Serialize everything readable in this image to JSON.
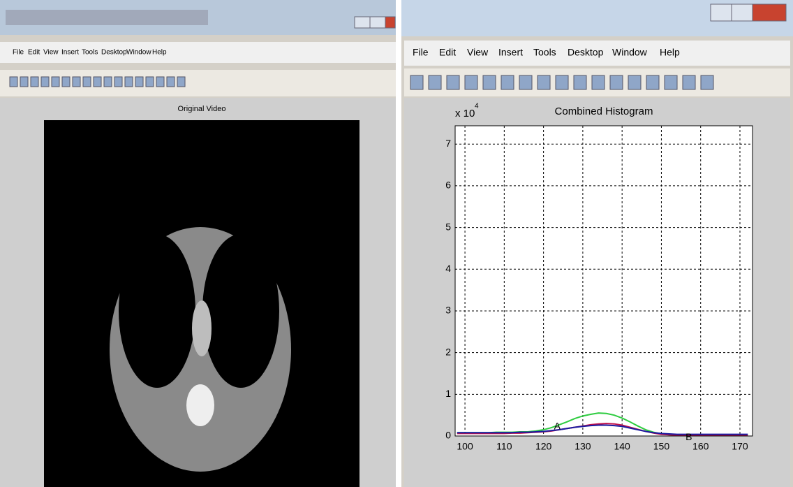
{
  "left_window": {
    "menu": [
      "File",
      "Edit",
      "View",
      "Insert",
      "Tools",
      "Desktop",
      "Window",
      "Help"
    ],
    "axes_title": "Original Video"
  },
  "right_window": {
    "menu": [
      "File",
      "Edit",
      "View",
      "Insert",
      "Tools",
      "Desktop",
      "Window",
      "Help"
    ]
  },
  "chart_data": {
    "type": "line",
    "title": "Combined Histogram",
    "y_multiplier": "x 10",
    "y_exponent": "4",
    "x": [
      98,
      100,
      102,
      104,
      106,
      108,
      110,
      112,
      114,
      116,
      118,
      120,
      122,
      124,
      126,
      128,
      130,
      132,
      134,
      136,
      138,
      140,
      142,
      144,
      146,
      148,
      150,
      152,
      154,
      156,
      158,
      160,
      162,
      164,
      166,
      168,
      170,
      172
    ],
    "series": [
      {
        "color": "#2ecc40",
        "values": [
          0.08,
          0.08,
          0.08,
          0.08,
          0.08,
          0.09,
          0.09,
          0.09,
          0.1,
          0.1,
          0.12,
          0.15,
          0.2,
          0.27,
          0.34,
          0.42,
          0.48,
          0.52,
          0.55,
          0.54,
          0.5,
          0.43,
          0.34,
          0.24,
          0.15,
          0.09,
          0.05,
          0.03,
          0.02,
          0.02,
          0.02,
          0.02,
          0.02,
          0.02,
          0.02,
          0.02,
          0.02,
          0.02
        ]
      },
      {
        "color": "#c0104a",
        "values": [
          0.06,
          0.06,
          0.06,
          0.06,
          0.06,
          0.06,
          0.06,
          0.07,
          0.07,
          0.08,
          0.09,
          0.1,
          0.12,
          0.15,
          0.18,
          0.21,
          0.24,
          0.27,
          0.29,
          0.3,
          0.29,
          0.26,
          0.21,
          0.16,
          0.11,
          0.07,
          0.04,
          0.03,
          0.02,
          0.02,
          0.02,
          0.02,
          0.02,
          0.02,
          0.02,
          0.02,
          0.02,
          0.02
        ]
      },
      {
        "color": "#1a1aa0",
        "values": [
          0.08,
          0.08,
          0.08,
          0.08,
          0.08,
          0.08,
          0.08,
          0.08,
          0.09,
          0.09,
          0.1,
          0.11,
          0.13,
          0.15,
          0.18,
          0.21,
          0.23,
          0.25,
          0.26,
          0.26,
          0.25,
          0.23,
          0.19,
          0.15,
          0.11,
          0.08,
          0.06,
          0.05,
          0.04,
          0.04,
          0.04,
          0.04,
          0.04,
          0.04,
          0.04,
          0.04,
          0.04,
          0.04
        ]
      }
    ],
    "annotations": [
      {
        "text": "A",
        "x": 123.5,
        "y": 0.22
      },
      {
        "text": "B",
        "x": 157,
        "y": -0.04
      }
    ],
    "xlim": [
      97.5,
      173.2
    ],
    "ylim": [
      0,
      7.44
    ],
    "xticks": [
      100,
      110,
      120,
      130,
      140,
      150,
      160,
      170
    ],
    "yticks": [
      0,
      1,
      2,
      3,
      4,
      5,
      6,
      7
    ],
    "grid": true
  }
}
